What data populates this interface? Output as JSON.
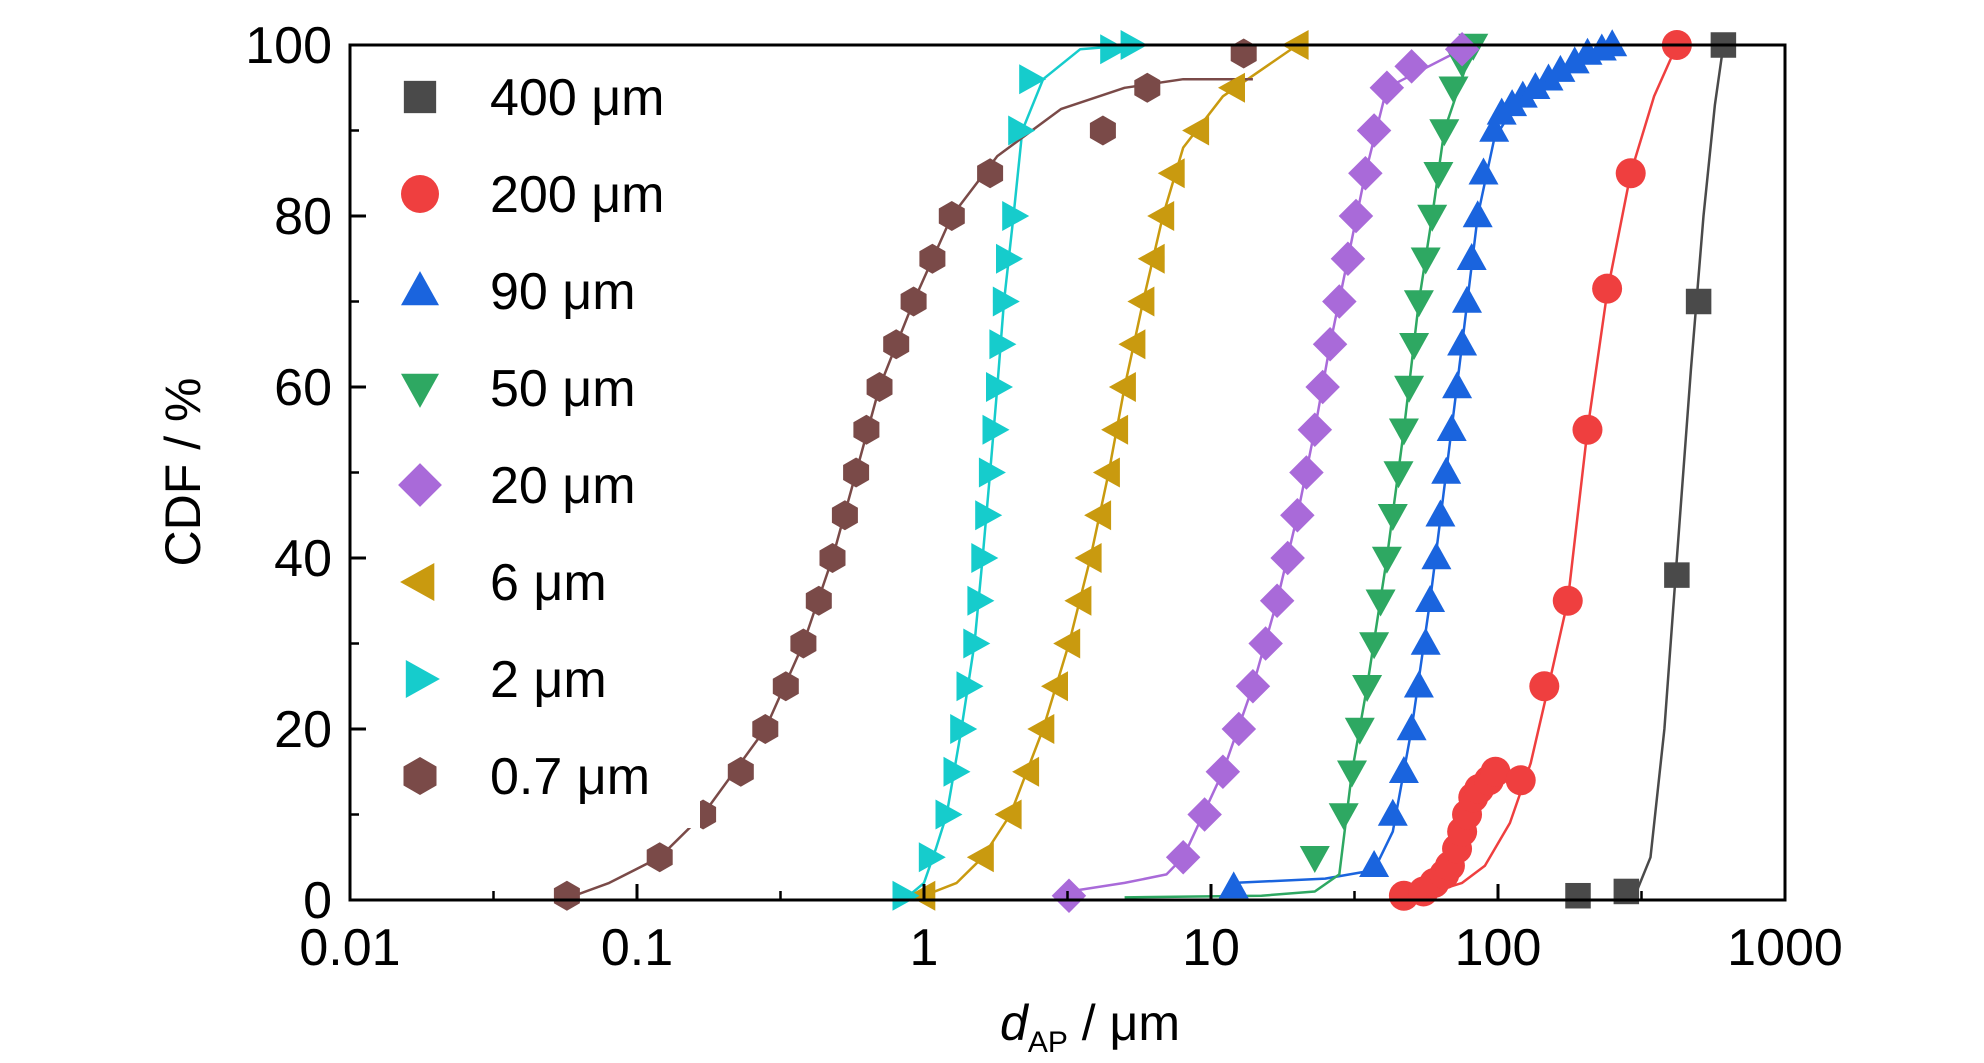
{
  "chart_data": {
    "type": "scatter",
    "title": "",
    "xlabel_italic": "d",
    "xlabel_sub": "AP",
    "xlabel_rest": " / μm",
    "ylabel": "CDF / %",
    "xscale": "log",
    "xlim": [
      0.01,
      1000
    ],
    "ylim": [
      0,
      100
    ],
    "x_ticks": [
      0.01,
      0.1,
      1,
      10,
      100,
      1000
    ],
    "x_tick_labels": [
      "0.01",
      "0.1",
      "1",
      "10",
      "100",
      "1000"
    ],
    "y_ticks": [
      0,
      20,
      40,
      60,
      80,
      100
    ],
    "y_tick_labels": [
      "0",
      "20",
      "40",
      "60",
      "80",
      "100"
    ],
    "grid": false,
    "legend_position": "top-left",
    "series": [
      {
        "name": "400 μm",
        "marker": "square",
        "color": "#4a4a4a",
        "points": [
          [
            190,
            0.5
          ],
          [
            280,
            1
          ],
          [
            420,
            38
          ],
          [
            500,
            70
          ],
          [
            610,
            100
          ]
        ],
        "curve": [
          [
            300,
            0.5
          ],
          [
            340,
            5
          ],
          [
            380,
            20
          ],
          [
            420,
            40
          ],
          [
            470,
            62
          ],
          [
            520,
            80
          ],
          [
            570,
            93
          ],
          [
            610,
            100
          ]
        ]
      },
      {
        "name": "200 μm",
        "marker": "circle",
        "color": "#ef3f3f",
        "points": [
          [
            47,
            0.5
          ],
          [
            55,
            1
          ],
          [
            60,
            2
          ],
          [
            65,
            3
          ],
          [
            68,
            4
          ],
          [
            72,
            6
          ],
          [
            75,
            8
          ],
          [
            78,
            10
          ],
          [
            82,
            12
          ],
          [
            86,
            13
          ],
          [
            93,
            14
          ],
          [
            98,
            15
          ],
          [
            120,
            14
          ],
          [
            145,
            25
          ],
          [
            175,
            35
          ],
          [
            205,
            55
          ],
          [
            240,
            71.5
          ],
          [
            290,
            85
          ],
          [
            420,
            100
          ]
        ],
        "curve": [
          [
            45,
            0.5
          ],
          [
            60,
            1
          ],
          [
            75,
            2
          ],
          [
            90,
            4
          ],
          [
            110,
            9
          ],
          [
            130,
            16
          ],
          [
            150,
            25
          ],
          [
            175,
            35
          ],
          [
            205,
            55
          ],
          [
            240,
            71
          ],
          [
            290,
            85
          ],
          [
            350,
            94
          ],
          [
            420,
            100
          ]
        ]
      },
      {
        "name": "90 μm",
        "marker": "triangle-up",
        "color": "#1a64de",
        "points": [
          [
            12,
            1.5
          ],
          [
            37,
            4
          ],
          [
            43,
            10
          ],
          [
            47,
            15
          ],
          [
            50,
            20
          ],
          [
            53,
            25
          ],
          [
            56,
            30
          ],
          [
            58,
            35
          ],
          [
            61,
            40
          ],
          [
            63,
            45
          ],
          [
            66,
            50
          ],
          [
            69,
            55
          ],
          [
            72,
            60
          ],
          [
            75,
            65
          ],
          [
            78,
            70
          ],
          [
            81,
            75
          ],
          [
            85,
            80
          ],
          [
            89,
            85
          ],
          [
            97,
            90
          ],
          [
            103,
            92
          ],
          [
            112,
            93
          ],
          [
            122,
            94
          ],
          [
            135,
            95
          ],
          [
            150,
            96
          ],
          [
            165,
            97
          ],
          [
            185,
            98
          ],
          [
            205,
            99
          ],
          [
            230,
            99.5
          ],
          [
            250,
            100
          ]
        ],
        "curve": [
          [
            12,
            2
          ],
          [
            25,
            2.5
          ],
          [
            37,
            3.5
          ],
          [
            43,
            8
          ],
          [
            50,
            20
          ],
          [
            58,
            35
          ],
          [
            66,
            50
          ],
          [
            75,
            65
          ],
          [
            85,
            80
          ],
          [
            97,
            89
          ],
          [
            120,
            94
          ],
          [
            160,
            97
          ],
          [
            250,
            100
          ]
        ]
      },
      {
        "name": "50 μm",
        "marker": "triangle-down",
        "color": "#2ea862",
        "points": [
          [
            23,
            5
          ],
          [
            29,
            10
          ],
          [
            31,
            15
          ],
          [
            33,
            20
          ],
          [
            35,
            25
          ],
          [
            37,
            30
          ],
          [
            39,
            35
          ],
          [
            41,
            40
          ],
          [
            43,
            45
          ],
          [
            45,
            50
          ],
          [
            47,
            55
          ],
          [
            49,
            60
          ],
          [
            51,
            65
          ],
          [
            53,
            70
          ],
          [
            56,
            75
          ],
          [
            59,
            80
          ],
          [
            62,
            85
          ],
          [
            65,
            90
          ],
          [
            70,
            95
          ],
          [
            75,
            98
          ],
          [
            82,
            100
          ]
        ],
        "curve": [
          [
            5,
            0.3
          ],
          [
            15,
            0.5
          ],
          [
            23,
            1
          ],
          [
            28,
            3
          ],
          [
            31,
            15
          ],
          [
            35,
            25
          ],
          [
            41,
            40
          ],
          [
            47,
            55
          ],
          [
            53,
            70
          ],
          [
            59,
            80
          ],
          [
            65,
            90
          ],
          [
            82,
            100
          ]
        ]
      },
      {
        "name": "20 μm",
        "marker": "diamond",
        "color": "#a96ad9",
        "points": [
          [
            3.2,
            0.5
          ],
          [
            8,
            5
          ],
          [
            9.5,
            10
          ],
          [
            11,
            15
          ],
          [
            12.5,
            20
          ],
          [
            14,
            25
          ],
          [
            15.5,
            30
          ],
          [
            17,
            35
          ],
          [
            18.5,
            40
          ],
          [
            20,
            45
          ],
          [
            21.5,
            50
          ],
          [
            23,
            55
          ],
          [
            24.5,
            60
          ],
          [
            26,
            65
          ],
          [
            28,
            70
          ],
          [
            30,
            75
          ],
          [
            32,
            80
          ],
          [
            34.5,
            85
          ],
          [
            37,
            90
          ],
          [
            41,
            95
          ],
          [
            50,
            97.5
          ],
          [
            75,
            99.5
          ]
        ],
        "curve": [
          [
            3.2,
            1
          ],
          [
            5,
            2
          ],
          [
            7,
            3
          ],
          [
            8,
            5
          ],
          [
            11,
            15
          ],
          [
            14,
            25
          ],
          [
            17,
            35
          ],
          [
            20,
            45
          ],
          [
            23,
            55
          ],
          [
            26,
            65
          ],
          [
            30,
            75
          ],
          [
            34.5,
            85
          ],
          [
            41,
            95
          ],
          [
            75,
            99.5
          ]
        ]
      },
      {
        "name": "6 μm",
        "marker": "triangle-left",
        "color": "#c99a0f",
        "points": [
          [
            1.0,
            0.5
          ],
          [
            1.6,
            5
          ],
          [
            2.0,
            10
          ],
          [
            2.3,
            15
          ],
          [
            2.6,
            20
          ],
          [
            2.9,
            25
          ],
          [
            3.2,
            30
          ],
          [
            3.5,
            35
          ],
          [
            3.8,
            40
          ],
          [
            4.1,
            45
          ],
          [
            4.4,
            50
          ],
          [
            4.7,
            55
          ],
          [
            5.0,
            60
          ],
          [
            5.4,
            65
          ],
          [
            5.8,
            70
          ],
          [
            6.3,
            75
          ],
          [
            6.8,
            80
          ],
          [
            7.4,
            85
          ],
          [
            9,
            90
          ],
          [
            12,
            95
          ],
          [
            20,
            100
          ]
        ],
        "curve": [
          [
            1.0,
            0.5
          ],
          [
            1.3,
            2
          ],
          [
            1.6,
            5
          ],
          [
            2.0,
            10
          ],
          [
            2.6,
            20
          ],
          [
            3.2,
            30
          ],
          [
            3.8,
            40
          ],
          [
            4.4,
            50
          ],
          [
            5.0,
            60
          ],
          [
            5.8,
            70
          ],
          [
            6.8,
            80
          ],
          [
            8,
            88
          ],
          [
            11,
            94
          ],
          [
            20,
            100
          ]
        ]
      },
      {
        "name": "2 μm",
        "marker": "triangle-right",
        "color": "#16cccc",
        "points": [
          [
            0.85,
            0.5
          ],
          [
            1.05,
            5
          ],
          [
            1.2,
            10
          ],
          [
            1.28,
            15
          ],
          [
            1.35,
            20
          ],
          [
            1.42,
            25
          ],
          [
            1.5,
            30
          ],
          [
            1.55,
            35
          ],
          [
            1.6,
            40
          ],
          [
            1.65,
            45
          ],
          [
            1.7,
            50
          ],
          [
            1.75,
            55
          ],
          [
            1.8,
            60
          ],
          [
            1.85,
            65
          ],
          [
            1.9,
            70
          ],
          [
            1.95,
            75
          ],
          [
            2.05,
            80
          ],
          [
            2.15,
            90
          ],
          [
            2.35,
            96
          ],
          [
            4.5,
            99.5
          ],
          [
            5.3,
            100
          ]
        ],
        "curve": [
          [
            0.85,
            0
          ],
          [
            1.0,
            2
          ],
          [
            1.1,
            6
          ],
          [
            1.2,
            10
          ],
          [
            1.35,
            20
          ],
          [
            1.5,
            30
          ],
          [
            1.6,
            40
          ],
          [
            1.7,
            50
          ],
          [
            1.8,
            60
          ],
          [
            1.9,
            70
          ],
          [
            2.05,
            80
          ],
          [
            2.2,
            90
          ],
          [
            2.6,
            96
          ],
          [
            3.5,
            99.5
          ],
          [
            5.3,
            100
          ]
        ]
      },
      {
        "name": "0.7 μm",
        "marker": "hexagon",
        "color": "#7a4a48",
        "points": [
          [
            0.057,
            0.5
          ],
          [
            0.12,
            5
          ],
          [
            0.17,
            10
          ],
          [
            0.23,
            15
          ],
          [
            0.28,
            20
          ],
          [
            0.33,
            25
          ],
          [
            0.38,
            30
          ],
          [
            0.43,
            35
          ],
          [
            0.48,
            40
          ],
          [
            0.53,
            45
          ],
          [
            0.58,
            50
          ],
          [
            0.63,
            55
          ],
          [
            0.7,
            60
          ],
          [
            0.8,
            65
          ],
          [
            0.92,
            70
          ],
          [
            1.07,
            75
          ],
          [
            1.25,
            80
          ],
          [
            1.7,
            85
          ],
          [
            4.2,
            90
          ],
          [
            6.0,
            95
          ],
          [
            13,
            99
          ]
        ],
        "curve": [
          [
            0.055,
            0
          ],
          [
            0.08,
            2
          ],
          [
            0.12,
            5
          ],
          [
            0.17,
            10
          ],
          [
            0.28,
            20
          ],
          [
            0.38,
            30
          ],
          [
            0.48,
            40
          ],
          [
            0.58,
            50
          ],
          [
            0.7,
            60
          ],
          [
            0.92,
            70
          ],
          [
            1.25,
            80
          ],
          [
            1.8,
            87
          ],
          [
            3,
            92.5
          ],
          [
            5,
            95
          ],
          [
            8,
            96
          ],
          [
            14,
            96
          ]
        ]
      }
    ]
  }
}
